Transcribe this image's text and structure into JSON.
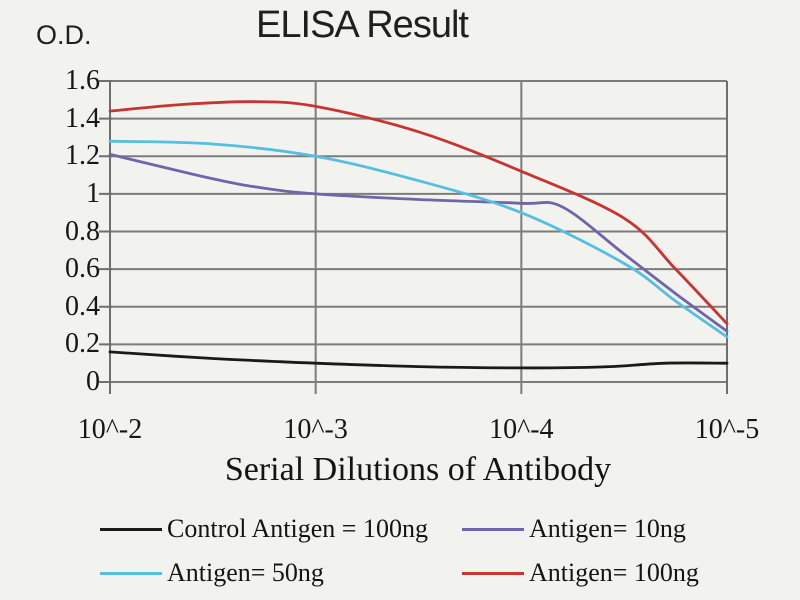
{
  "page": {
    "background": "#f2f3ef"
  },
  "colors": {
    "grid": "#7c7c7c",
    "axis": "#6f6f6f",
    "text": "#1c1c1c"
  },
  "chart_data": {
    "type": "line",
    "title": "ELISA Result",
    "ylabel": "O.D.",
    "xlabel": "Serial Dilutions of Antibody",
    "x_tick_labels": [
      "10^-2",
      "10^-3",
      "10^-4",
      "10^-5"
    ],
    "y_ticks": [
      0,
      0.2,
      0.4,
      0.6,
      0.8,
      1,
      1.2,
      1.4,
      1.6
    ],
    "y_tick_labels": [
      "0",
      "0.2",
      "0.4",
      "0.6",
      "0.8",
      "1",
      "1.2",
      "1.4",
      "1.6"
    ],
    "ylim": [
      0,
      1.6
    ],
    "x_unit": "decade index, 0 = 10^-2 dilution through 3 = 10^-5 dilution",
    "grid": true,
    "legend_position": "bottom",
    "series": [
      {
        "name": "Control Antigen = 100ng",
        "color": "#1a1a1a",
        "points": [
          [
            0,
            0.16
          ],
          [
            0.5,
            0.125
          ],
          [
            1,
            0.1
          ],
          [
            1.5,
            0.082
          ],
          [
            2,
            0.075
          ],
          [
            2.4,
            0.08
          ],
          [
            2.7,
            0.1
          ],
          [
            3,
            0.1
          ]
        ]
      },
      {
        "name": "Antigen= 10ng",
        "color": "#7264a8",
        "points": [
          [
            0,
            1.21
          ],
          [
            0.5,
            1.08
          ],
          [
            0.75,
            1.03
          ],
          [
            1,
            1.0
          ],
          [
            1.5,
            0.97
          ],
          [
            2,
            0.95
          ],
          [
            2.2,
            0.93
          ],
          [
            2.5,
            0.68
          ],
          [
            2.75,
            0.47
          ],
          [
            3,
            0.27
          ]
        ]
      },
      {
        "name": "Antigen= 50ng",
        "color": "#54bfe2",
        "points": [
          [
            0,
            1.28
          ],
          [
            0.5,
            1.265
          ],
          [
            1,
            1.2
          ],
          [
            1.5,
            1.07
          ],
          [
            2,
            0.9
          ],
          [
            2.5,
            0.63
          ],
          [
            2.75,
            0.43
          ],
          [
            3,
            0.24
          ]
        ]
      },
      {
        "name": "Antigen= 100ng",
        "color": "#c8342f",
        "points": [
          [
            0,
            1.44
          ],
          [
            0.35,
            1.475
          ],
          [
            0.7,
            1.49
          ],
          [
            1,
            1.465
          ],
          [
            1.5,
            1.33
          ],
          [
            2,
            1.12
          ],
          [
            2.5,
            0.87
          ],
          [
            2.75,
            0.6
          ],
          [
            3,
            0.31
          ]
        ]
      }
    ]
  }
}
